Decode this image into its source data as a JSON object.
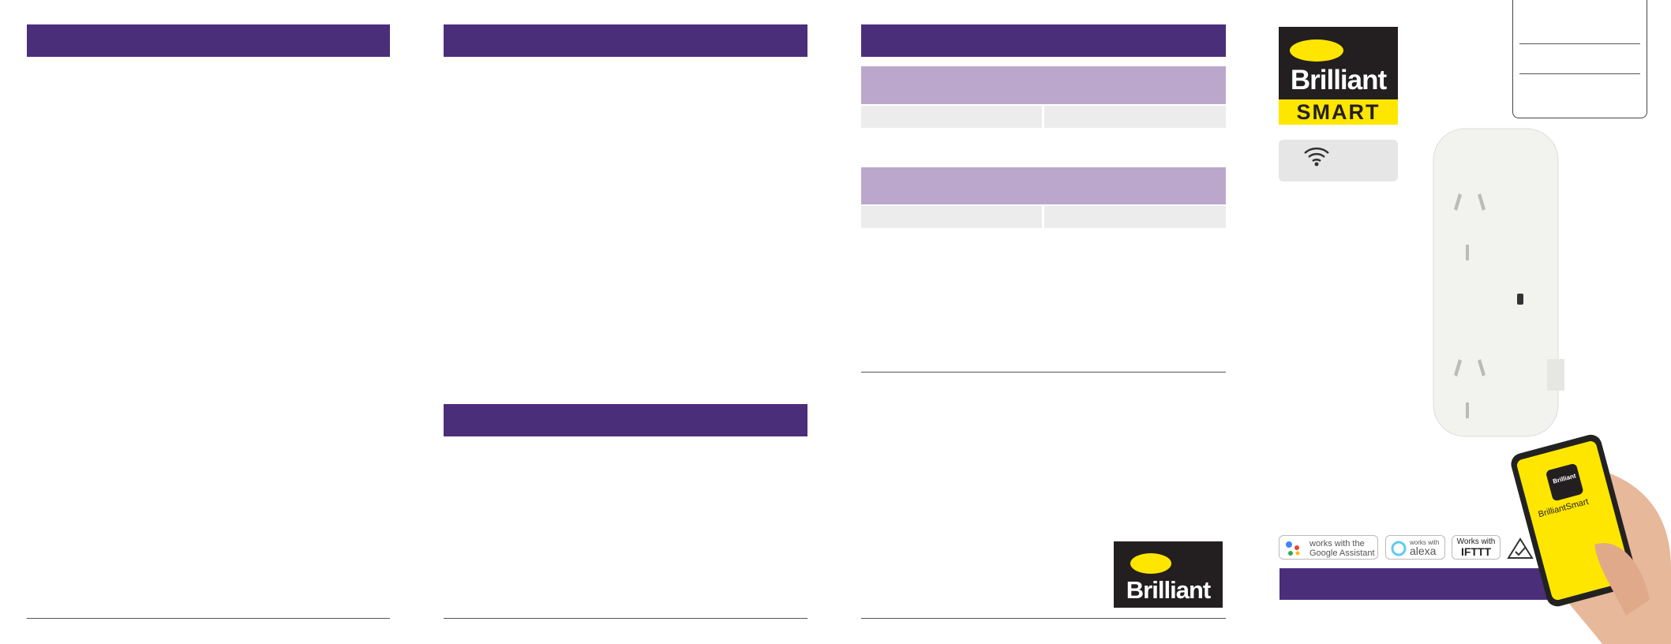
{
  "logo": {
    "brand": "Brilliant",
    "tagline": "SMART"
  },
  "badges": {
    "google_top": "works with the",
    "google_bottom": "Google Assistant",
    "alexa_top": "works with",
    "alexa_bottom": "alexa",
    "ifttt_top": "Works with",
    "ifttt_bottom": "IFTTT"
  },
  "phone": {
    "icon": "Brilliant",
    "app_name": "BrilliantSmart"
  },
  "footer_logo": {
    "brand": "Brilliant"
  }
}
